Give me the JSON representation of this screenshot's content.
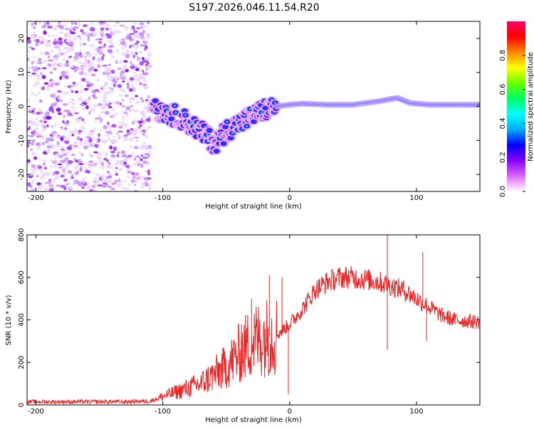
{
  "title": "S197.2026.046.11.54.R20",
  "chart_data": [
    {
      "type": "heatmap",
      "xlabel": "Height of straight line (km)",
      "ylabel": "Frequency (Hz)",
      "xlim": [
        -207,
        150
      ],
      "ylim": [
        -25,
        25
      ],
      "xticks": [
        -200,
        -100,
        0,
        100
      ],
      "yticks": [
        -20,
        -10,
        0,
        10,
        20
      ],
      "colorbar": {
        "label": "Normalized spectral amplitude",
        "range": [
          0.0,
          1.0
        ],
        "ticks": [
          0.0,
          0.2,
          0.4,
          0.6,
          0.8
        ],
        "tick_labels": [
          "0.0",
          "0.2",
          "0.4",
          "0.6",
          "0.8"
        ],
        "colors": [
          "#ffffff",
          "#dd66ff",
          "#8800ff",
          "#0000ff",
          "#00aaff",
          "#00ffff",
          "#00ff66",
          "#66ff00",
          "#ffff00",
          "#ff8800",
          "#ff0000",
          "#ff0066"
        ]
      },
      "noise_region": {
        "x": [
          -207,
          -110
        ],
        "y": [
          -25,
          25
        ]
      },
      "signal_track": [
        {
          "x": -105,
          "f": -1.0
        },
        {
          "x": -95,
          "f": -2.0
        },
        {
          "x": -85,
          "f": -3.5
        },
        {
          "x": -75,
          "f": -6.0
        },
        {
          "x": -65,
          "f": -9.0
        },
        {
          "x": -58,
          "f": -11.0
        },
        {
          "x": -50,
          "f": -7.0
        },
        {
          "x": -40,
          "f": -5.0
        },
        {
          "x": -30,
          "f": -3.0
        },
        {
          "x": -20,
          "f": -1.0
        },
        {
          "x": -10,
          "f": 0.0
        },
        {
          "x": 0,
          "f": 0.5
        },
        {
          "x": 10,
          "f": 0.8
        },
        {
          "x": 30,
          "f": 0.5
        },
        {
          "x": 50,
          "f": 0.5
        },
        {
          "x": 70,
          "f": 1.5
        },
        {
          "x": 85,
          "f": 2.5
        },
        {
          "x": 95,
          "f": 1.0
        },
        {
          "x": 110,
          "f": 0.5
        },
        {
          "x": 130,
          "f": 0.5
        },
        {
          "x": 150,
          "f": 0.5
        }
      ]
    },
    {
      "type": "line",
      "xlabel": "Height of straight line (km)",
      "ylabel": "SNR (10 * v/v)",
      "xlim": [
        -207,
        150
      ],
      "ylim": [
        0,
        800
      ],
      "xticks": [
        -200,
        -100,
        0,
        100
      ],
      "yticks": [
        0,
        200,
        400,
        600,
        800
      ],
      "color": "#ee2222",
      "series": [
        {
          "name": "SNR",
          "x": [
            -207,
            -190,
            -170,
            -150,
            -130,
            -110,
            -100,
            -90,
            -80,
            -70,
            -60,
            -50,
            -40,
            -30,
            -20,
            -10,
            0,
            10,
            20,
            30,
            40,
            50,
            60,
            70,
            75,
            80,
            90,
            100,
            110,
            120,
            130,
            140,
            150
          ],
          "y": [
            15,
            15,
            15,
            15,
            15,
            18,
            40,
            60,
            80,
            100,
            140,
            180,
            240,
            300,
            320,
            330,
            380,
            450,
            540,
            580,
            600,
            600,
            590,
            580,
            570,
            560,
            540,
            500,
            460,
            420,
            400,
            395,
            390
          ]
        }
      ],
      "spikes": [
        {
          "x": -38,
          "y": 380
        },
        {
          "x": -30,
          "y": 500
        },
        {
          "x": -16,
          "y": 610
        },
        {
          "x": -6,
          "y": 600
        },
        {
          "x": -1,
          "y": 50
        },
        {
          "x": 77,
          "y": 800
        },
        {
          "x": 77,
          "y": 260
        },
        {
          "x": 105,
          "y": 720
        },
        {
          "x": 108,
          "y": 300
        }
      ]
    }
  ]
}
